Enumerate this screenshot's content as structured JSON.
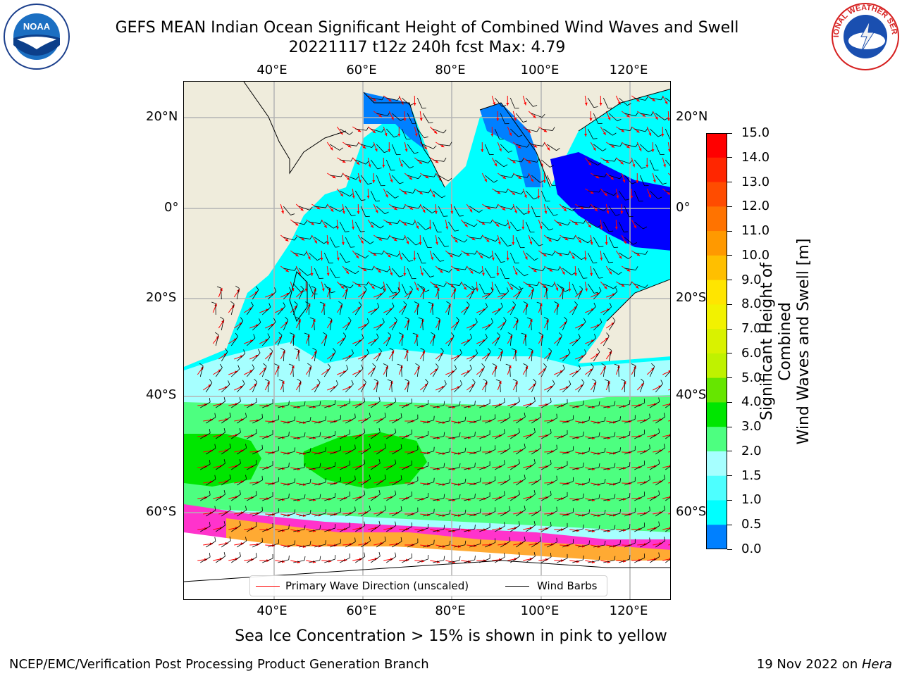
{
  "title": {
    "line1": "GEFS MEAN Indian Ocean Significant Height of Combined Wind Waves and Swell",
    "line2": "20221117 t12z 240h fcst   Max: 4.79"
  },
  "axes": {
    "lon_labels": [
      "40°E",
      "60°E",
      "80°E",
      "100°E",
      "120°E"
    ],
    "lat_labels": [
      "20°N",
      "0°",
      "20°S",
      "40°S",
      "60°S"
    ]
  },
  "colorbar": {
    "label_line1": "Significant Height of Combined",
    "label_line2": "Wind Waves and Swell [m]",
    "ticks": [
      "15.0",
      "14.0",
      "13.0",
      "12.0",
      "11.0",
      "10.0",
      "9.0",
      "8.0",
      "7.0",
      "6.0",
      "5.0",
      "4.0",
      "3.0",
      "2.0",
      "1.5",
      "1.0",
      "0.5",
      "0.0"
    ],
    "colors": [
      "#ff0000",
      "#ff2600",
      "#ff4c00",
      "#ff7300",
      "#ff9900",
      "#ffbf00",
      "#ffe500",
      "#f2f200",
      "#d9f200",
      "#bff200",
      "#66e600",
      "#00e600",
      "#4dff80",
      "#a6ffff",
      "#4dffff",
      "#00ffff",
      "#0080ff",
      "#0000ff"
    ]
  },
  "legend": {
    "wave_label": "Primary Wave Direction (unscaled)",
    "wind_label": "Wind Barbs",
    "wave_color": "#ff0000",
    "wind_color": "#000000"
  },
  "note": "Sea Ice Concentration > 15% is shown in pink to yellow",
  "footer": {
    "left": "NCEP/EMC/Verification Post Processing Product Generation Branch",
    "right_prefix": "19 Nov 2022 on ",
    "right_machine": "Hera"
  },
  "logos": {
    "noaa_text": "NOAA",
    "nws_text": "NATIONAL WEATHER SERVICE"
  },
  "map_colors": {
    "land": "#efecdc",
    "ocean_low": "#00ffff",
    "ocean_mid": "#a6ffff",
    "ocean_high": "#4dff80",
    "ocean_max": "#00e600",
    "shallow": "#0080ff",
    "deep": "#0000ff",
    "ice": "#ffffff",
    "ice_edge_pink": "#ff33cc",
    "ice_edge_orange": "#ffaa33"
  }
}
